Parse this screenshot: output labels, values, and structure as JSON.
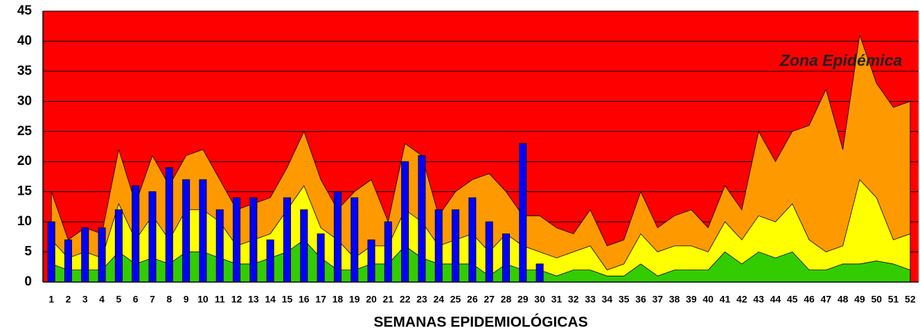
{
  "chart_data": {
    "type": "area_bar",
    "x_label": "SEMANAS EPIDEMIOLÓGICAS",
    "annotation": "Zona Epidémica",
    "background": "#ff0000",
    "categories": [
      1,
      2,
      3,
      4,
      5,
      6,
      7,
      8,
      9,
      10,
      11,
      12,
      13,
      14,
      15,
      16,
      17,
      18,
      19,
      20,
      21,
      22,
      23,
      24,
      25,
      26,
      27,
      28,
      29,
      30,
      31,
      32,
      33,
      34,
      35,
      36,
      37,
      38,
      39,
      40,
      41,
      42,
      43,
      44,
      45,
      46,
      47,
      48,
      49,
      50,
      51,
      52
    ],
    "series": [
      {
        "kind": "area",
        "color": "#ff9900",
        "values": [
          15,
          7,
          9,
          8,
          22,
          13,
          21,
          16,
          21,
          22,
          17,
          12,
          13,
          14,
          19,
          25,
          17,
          12,
          15,
          17,
          10,
          23,
          21,
          11,
          15,
          17,
          18,
          15,
          11,
          11,
          9,
          8,
          12,
          6,
          7,
          15,
          9,
          11,
          12,
          9,
          16,
          12,
          25,
          20,
          25,
          26,
          32,
          22,
          41,
          33,
          29,
          30
        ]
      },
      {
        "kind": "area",
        "color": "#ffff00",
        "values": [
          7,
          4,
          5,
          4,
          13,
          7,
          11,
          7,
          12,
          12,
          10,
          6,
          7,
          8,
          12,
          16,
          9,
          7,
          4,
          6,
          6,
          12,
          10,
          6,
          7,
          8,
          5,
          8,
          6,
          5,
          4,
          5,
          6,
          2,
          3,
          8,
          5,
          6,
          6,
          5,
          10,
          7,
          11,
          10,
          13,
          7,
          5,
          6,
          17,
          14,
          7,
          8
        ]
      },
      {
        "kind": "area",
        "color": "#33cc00",
        "values": [
          3,
          2,
          2,
          2,
          5,
          3,
          4,
          3,
          5,
          5,
          4,
          3,
          3,
          4,
          5,
          7,
          4,
          2,
          2,
          3,
          3,
          6,
          4,
          3,
          3,
          3,
          1,
          3,
          2,
          2,
          1,
          2,
          2,
          1,
          1,
          3,
          1,
          2,
          2,
          2,
          5,
          3,
          5,
          4,
          5,
          2,
          2,
          3,
          3,
          3.5,
          3,
          2
        ]
      },
      {
        "kind": "bar",
        "color": "#0000ff",
        "values": [
          10,
          7,
          9,
          9,
          12,
          16,
          15,
          19,
          17,
          17,
          12,
          14,
          14,
          7,
          14,
          12,
          8,
          15,
          14,
          7,
          10,
          20,
          21,
          12,
          12,
          14,
          10,
          8,
          23,
          3,
          null,
          null,
          null,
          null,
          null,
          null,
          null,
          null,
          null,
          null,
          null,
          null,
          null,
          null,
          null,
          null,
          null,
          null,
          null,
          null,
          null,
          null
        ]
      }
    ],
    "ylim": [
      0,
      45
    ],
    "yticks": [
      0,
      5,
      10,
      15,
      20,
      25,
      30,
      35,
      40,
      45
    ],
    "grid": true
  }
}
